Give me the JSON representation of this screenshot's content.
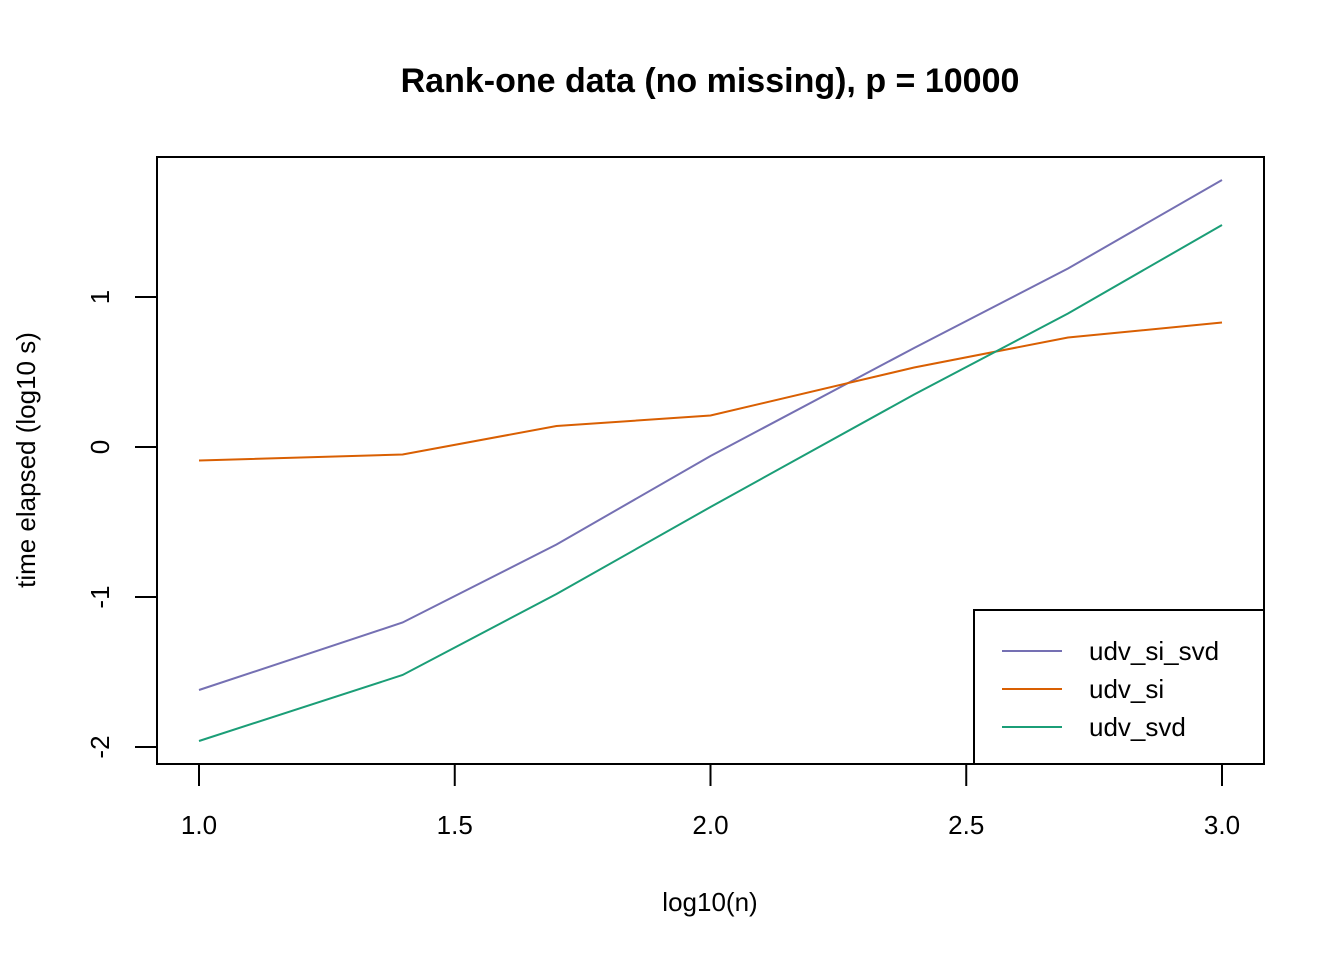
{
  "chart_data": {
    "type": "line",
    "title": "Rank-one data (no missing), p = 10000",
    "xlabel": "log10(n)",
    "ylabel": "time elapsed (log10 s)",
    "xlim": [
      1.0,
      3.0
    ],
    "ylim": [
      -2.1,
      1.9
    ],
    "x_ticks": [
      "1.0",
      "1.5",
      "2.0",
      "2.5",
      "3.0"
    ],
    "y_ticks": [
      "-2",
      "-1",
      "0",
      "1"
    ],
    "x": [
      1.0,
      1.398,
      1.699,
      2.0,
      2.398,
      2.699,
      3.0
    ],
    "series": [
      {
        "name": "udv_si_svd",
        "color": "#7570B3",
        "values": [
          -1.62,
          -1.17,
          -0.65,
          -0.06,
          0.66,
          1.19,
          1.78
        ]
      },
      {
        "name": "udv_si",
        "color": "#D95F02",
        "values": [
          -0.09,
          -0.05,
          0.14,
          0.21,
          0.53,
          0.73,
          0.83
        ]
      },
      {
        "name": "udv_svd",
        "color": "#1B9E77",
        "values": [
          -1.96,
          -1.52,
          -0.98,
          -0.4,
          0.35,
          0.89,
          1.48
        ]
      }
    ],
    "legend_position": "bottom-right",
    "grid": false
  }
}
